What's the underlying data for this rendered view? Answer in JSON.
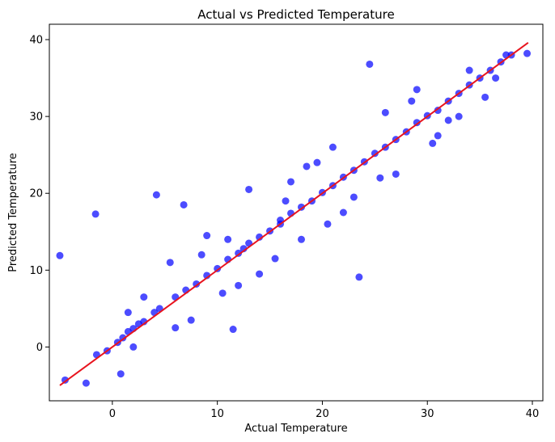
{
  "chart_data": {
    "type": "scatter",
    "title": "Actual vs Predicted Temperature",
    "xlabel": "Actual Temperature",
    "ylabel": "Predicted Temperature",
    "xlim": [
      -6.0,
      41.0
    ],
    "ylim": [
      -7.0,
      42.0
    ],
    "x_ticks": [
      0,
      10,
      20,
      30,
      40
    ],
    "y_ticks": [
      0,
      10,
      20,
      30,
      40
    ],
    "grid": false,
    "colors": {
      "points": "#0000ff",
      "fit_line": "#e8141e"
    },
    "fit_line": {
      "x": [
        -5.0,
        39.6
      ],
      "y": [
        -5.0,
        39.6
      ]
    },
    "series": [
      {
        "x": [
          -5.0,
          -4.5,
          -2.5,
          -1.5,
          -0.5,
          0.5,
          1.0,
          1.5,
          2.0,
          2.5,
          3.0,
          4.0,
          4.5,
          6.0,
          7.0,
          8.0,
          9.0,
          10.0,
          11.0,
          12.0,
          12.5,
          13.0,
          14.0,
          15.0,
          16.0,
          16.0,
          17.0,
          18.0,
          19.0,
          20.0,
          21.0,
          22.0,
          23.0,
          24.0,
          25.0,
          26.0,
          27.0,
          28.0,
          29.0,
          30.0,
          31.0,
          32.0,
          33.0,
          34.0,
          35.0,
          36.0,
          37.0,
          38.0,
          39.5,
          4.2,
          -1.6,
          0.8,
          11.5,
          23.5,
          24.5,
          13.0,
          6.8,
          18.0,
          27.0,
          5.5,
          9.0,
          15.5,
          21.0,
          33.0,
          2.0,
          7.5,
          12.0,
          17.0,
          22.0,
          29.0,
          35.5,
          3.0,
          8.5,
          14.0,
          19.5,
          25.5,
          31.0,
          36.5,
          1.5,
          10.5,
          16.5,
          20.5,
          26.0,
          30.5,
          34.0,
          6.0,
          11.0,
          18.5,
          23.0,
          28.5,
          32.0,
          37.5
        ],
        "y": [
          11.9,
          -4.3,
          -4.7,
          -1.0,
          -0.5,
          0.6,
          1.2,
          2.0,
          2.4,
          3.0,
          3.3,
          4.5,
          5.0,
          6.5,
          7.4,
          8.2,
          9.3,
          10.2,
          11.4,
          12.2,
          12.8,
          13.5,
          14.3,
          15.1,
          16.0,
          16.5,
          17.4,
          18.2,
          19.0,
          20.1,
          21.0,
          22.1,
          23.0,
          24.1,
          25.2,
          26.0,
          27.0,
          28.0,
          29.2,
          30.1,
          30.8,
          32.0,
          33.0,
          34.1,
          35.0,
          36.0,
          37.1,
          38.0,
          38.2,
          19.8,
          17.3,
          -3.5,
          2.3,
          9.1,
          36.8,
          20.5,
          18.5,
          14.0,
          22.5,
          11.0,
          14.5,
          11.5,
          26.0,
          30.0,
          0.0,
          3.5,
          8.0,
          21.5,
          17.5,
          33.5,
          32.5,
          6.5,
          12.0,
          9.5,
          24.0,
          22.0,
          27.5,
          35.0,
          4.5,
          7.0,
          19.0,
          16.0,
          30.5,
          26.5,
          36.0,
          2.5,
          14.0,
          23.5,
          19.5,
          32.0,
          29.5,
          38.0
        ]
      }
    ]
  }
}
